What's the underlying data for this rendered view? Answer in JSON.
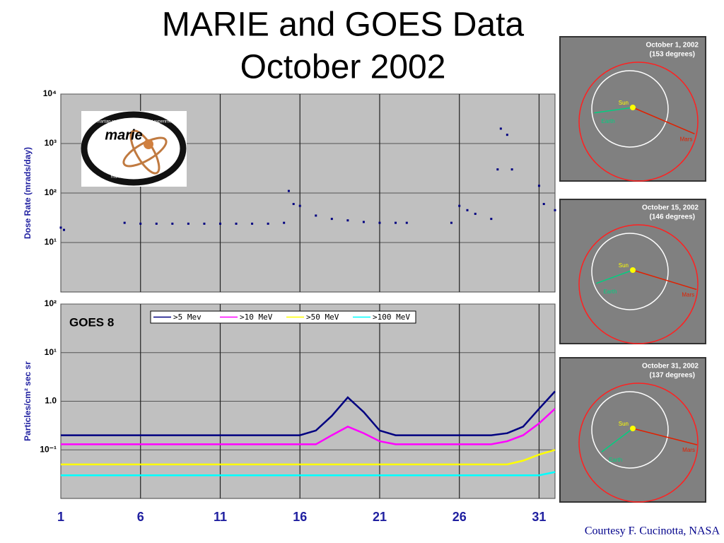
{
  "title": [
    "MARIE and GOES Data",
    "October 2002"
  ],
  "credit": "Courtesy F. Cucinotta, NASA",
  "logo": {
    "name": "marie",
    "ring_top": "martian radiation environment experiment",
    "ring_bottom": "mars '01 program"
  },
  "orbits": [
    {
      "date": "October 1,  2002",
      "angle": "(153 degrees)",
      "sun": "Sun",
      "earth": "Earth",
      "mars": "Mars"
    },
    {
      "date": "October 15,  2002",
      "angle": "(146 degrees)",
      "sun": "Sun",
      "earth": "Earth",
      "mars": "Mars"
    },
    {
      "date": "October 31,  2002",
      "angle": "(137 degrees)",
      "sun": "Sun",
      "earth": "Earth",
      "mars": "Mars"
    }
  ],
  "chart_data": [
    {
      "type": "scatter",
      "ylabel": "Dose Rate (mrads/day)",
      "log_y": true,
      "grid": true,
      "color": "#000080",
      "x": [
        1,
        1.2,
        5,
        6,
        7,
        8,
        9,
        10,
        11,
        12,
        13,
        14,
        15,
        15.3,
        15.6,
        16,
        17,
        18,
        19,
        20,
        21,
        22,
        22.7,
        25.5,
        26,
        26.5,
        27,
        28,
        28.4,
        28.6,
        29,
        29.3,
        31,
        31.3,
        32
      ],
      "values": [
        20,
        18,
        25,
        24,
        24,
        24,
        24,
        24,
        24,
        24,
        24,
        24,
        25,
        110,
        60,
        55,
        35,
        30,
        28,
        26,
        25,
        25,
        25,
        25,
        55,
        45,
        38,
        30,
        300,
        2000,
        1500,
        300,
        140,
        60,
        45
      ],
      "xlim": [
        1,
        32
      ],
      "ylim": [
        1,
        10000
      ],
      "yticks": [
        {
          "value": 10000,
          "label": "10⁴"
        },
        {
          "value": 1000,
          "label": "10³"
        },
        {
          "value": 100,
          "label": "10²"
        },
        {
          "value": 10,
          "label": "10¹"
        }
      ]
    },
    {
      "type": "line",
      "ylabel": "Particles/cm² sec sr",
      "log_y": true,
      "grid": true,
      "legend": "top",
      "annotation": "GOES 8",
      "x": [
        1,
        2,
        3,
        4,
        5,
        6,
        7,
        8,
        9,
        10,
        11,
        12,
        13,
        14,
        15,
        16,
        17,
        18,
        19,
        20,
        21,
        22,
        23,
        24,
        25,
        26,
        27,
        28,
        29,
        30,
        31,
        32
      ],
      "series": [
        {
          "name": ">5 Mev",
          "color": "#000080",
          "values": [
            0.2,
            0.2,
            0.2,
            0.2,
            0.2,
            0.2,
            0.2,
            0.2,
            0.2,
            0.2,
            0.2,
            0.2,
            0.2,
            0.2,
            0.2,
            0.2,
            0.25,
            0.5,
            1.2,
            0.6,
            0.25,
            0.2,
            0.2,
            0.2,
            0.2,
            0.2,
            0.2,
            0.2,
            0.22,
            0.3,
            0.7,
            1.6
          ]
        },
        {
          "name": ">10 MeV",
          "color": "#ff00ff",
          "values": [
            0.13,
            0.13,
            0.13,
            0.13,
            0.13,
            0.13,
            0.13,
            0.13,
            0.13,
            0.13,
            0.13,
            0.13,
            0.13,
            0.13,
            0.13,
            0.13,
            0.13,
            0.2,
            0.3,
            0.22,
            0.15,
            0.13,
            0.13,
            0.13,
            0.13,
            0.13,
            0.13,
            0.13,
            0.15,
            0.2,
            0.35,
            0.7
          ]
        },
        {
          "name": ">50 MeV",
          "color": "#ffff00",
          "values": [
            0.05,
            0.05,
            0.05,
            0.05,
            0.05,
            0.05,
            0.05,
            0.05,
            0.05,
            0.05,
            0.05,
            0.05,
            0.05,
            0.05,
            0.05,
            0.05,
            0.05,
            0.05,
            0.05,
            0.05,
            0.05,
            0.05,
            0.05,
            0.05,
            0.05,
            0.05,
            0.05,
            0.05,
            0.05,
            0.06,
            0.08,
            0.1
          ]
        },
        {
          "name": ">100 MeV",
          "color": "#00ffff",
          "values": [
            0.03,
            0.03,
            0.03,
            0.03,
            0.03,
            0.03,
            0.03,
            0.03,
            0.03,
            0.03,
            0.03,
            0.03,
            0.03,
            0.03,
            0.03,
            0.03,
            0.03,
            0.03,
            0.03,
            0.03,
            0.03,
            0.03,
            0.03,
            0.03,
            0.03,
            0.03,
            0.03,
            0.03,
            0.03,
            0.03,
            0.03,
            0.035
          ]
        }
      ],
      "xlim": [
        1,
        32
      ],
      "ylim": [
        0.01,
        100
      ],
      "xticks": [
        1,
        6,
        11,
        16,
        21,
        26,
        31
      ],
      "yticks": [
        {
          "value": 100,
          "label": "10²"
        },
        {
          "value": 10,
          "label": "10¹"
        },
        {
          "value": 1,
          "label": "1.0"
        },
        {
          "value": 0.1,
          "label": "10⁻¹"
        }
      ]
    }
  ]
}
